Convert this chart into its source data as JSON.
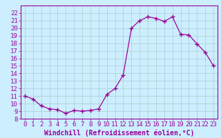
{
  "x": [
    0,
    1,
    2,
    3,
    4,
    5,
    6,
    7,
    8,
    9,
    10,
    11,
    12,
    13,
    14,
    15,
    16,
    17,
    18,
    19,
    20,
    21,
    22,
    23
  ],
  "y": [
    11.0,
    10.6,
    9.7,
    9.3,
    9.2,
    8.7,
    9.1,
    9.0,
    9.1,
    9.3,
    11.2,
    12.0,
    13.8,
    20.0,
    21.0,
    21.5,
    21.3,
    20.9,
    21.5,
    19.2,
    19.1,
    17.9,
    16.8,
    15.0
  ],
  "line_color": "#990099",
  "marker": "+",
  "marker_size": 4,
  "bg_color": "#cceeff",
  "grid_color": "#aacccc",
  "xlabel": "Windchill (Refroidissement éolien,°C)",
  "xlabel_color": "#990099",
  "tick_color": "#990099",
  "label_color": "#990099",
  "ylim": [
    8,
    23
  ],
  "xlim": [
    -0.5,
    23.5
  ],
  "yticks": [
    8,
    9,
    10,
    11,
    12,
    13,
    14,
    15,
    16,
    17,
    18,
    19,
    20,
    21,
    22
  ],
  "xticks": [
    0,
    1,
    2,
    3,
    4,
    5,
    6,
    7,
    8,
    9,
    10,
    11,
    12,
    13,
    14,
    15,
    16,
    17,
    18,
    19,
    20,
    21,
    22,
    23
  ],
  "tick_fontsize": 6.5,
  "xlabel_fontsize": 7.0
}
